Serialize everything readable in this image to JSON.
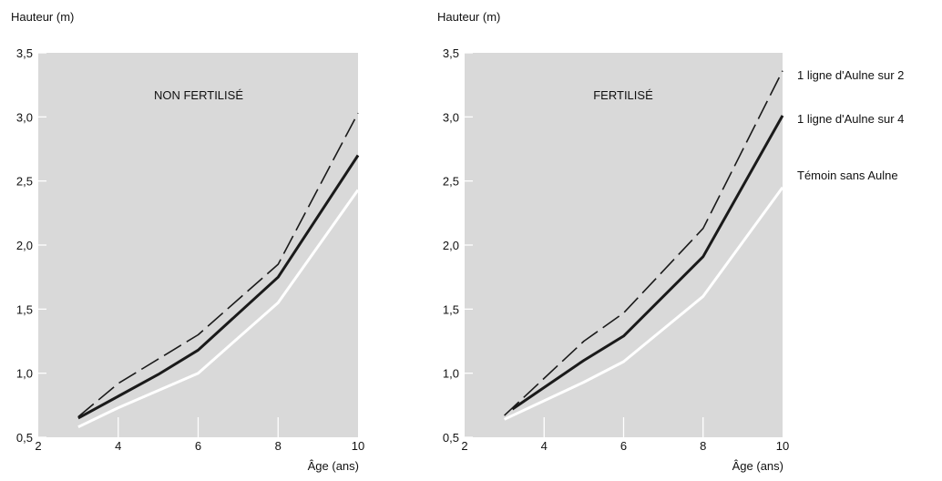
{
  "chart_data": [
    {
      "type": "line",
      "title": "NON FERTILISÉ",
      "ylabel": "Hauteur (m)",
      "xlabel": "Âge (ans)",
      "xlim": [
        2,
        10
      ],
      "ylim": [
        0.5,
        3.5
      ],
      "xticks": [
        2,
        4,
        6,
        8,
        10
      ],
      "xtick_labels": [
        "2",
        "4",
        "6",
        "8",
        "10"
      ],
      "yticks": [
        0.5,
        1.0,
        1.5,
        2.0,
        2.5,
        3.0,
        3.5
      ],
      "ytick_labels": [
        "0,5",
        "1,0",
        "1,5",
        "2,0",
        "2,5",
        "3,0",
        "3,5"
      ],
      "background": "#d9d9d9",
      "series": [
        {
          "style": "dash",
          "color": "#1a1a1a",
          "x": [
            3,
            4,
            6,
            8,
            10
          ],
          "y": [
            0.66,
            0.92,
            1.3,
            1.85,
            3.03
          ]
        },
        {
          "style": "thick",
          "color": "#1a1a1a",
          "x": [
            3,
            4,
            5,
            6,
            8,
            10
          ],
          "y": [
            0.65,
            0.82,
            0.99,
            1.18,
            1.75,
            2.7
          ]
        },
        {
          "style": "white",
          "color": "#ffffff",
          "x": [
            3,
            4,
            6,
            8,
            10
          ],
          "y": [
            0.58,
            0.73,
            1.0,
            1.55,
            2.43
          ]
        }
      ]
    },
    {
      "type": "line",
      "title": "FERTILISÉ",
      "ylabel": "Hauteur (m)",
      "xlabel": "Âge (ans)",
      "xlim": [
        2,
        10
      ],
      "ylim": [
        0.5,
        3.5
      ],
      "xticks": [
        2,
        4,
        6,
        8,
        10
      ],
      "xtick_labels": [
        "2",
        "4",
        "6",
        "8",
        "10"
      ],
      "yticks": [
        0.5,
        1.0,
        1.5,
        2.0,
        2.5,
        3.0,
        3.5
      ],
      "ytick_labels": [
        "0,5",
        "1,0",
        "1,5",
        "2,0",
        "2,5",
        "3,0",
        "3,5"
      ],
      "background": "#d9d9d9",
      "series": [
        {
          "name": "1 ligne d'Aulne sur 2",
          "style": "dash",
          "color": "#1a1a1a",
          "x": [
            3,
            5,
            6,
            8,
            10
          ],
          "y": [
            0.67,
            1.25,
            1.47,
            2.13,
            3.36
          ]
        },
        {
          "name": "1 ligne d'Aulne sur 4",
          "style": "thick",
          "color": "#1a1a1a",
          "x": [
            3.2,
            5,
            6,
            8,
            10
          ],
          "y": [
            0.72,
            1.1,
            1.29,
            1.91,
            3.01
          ]
        },
        {
          "name": "Témoin sans Aulne",
          "style": "white",
          "color": "#ffffff",
          "x": [
            3,
            5,
            6,
            8,
            10
          ],
          "y": [
            0.64,
            0.93,
            1.09,
            1.6,
            2.45
          ]
        }
      ]
    }
  ]
}
